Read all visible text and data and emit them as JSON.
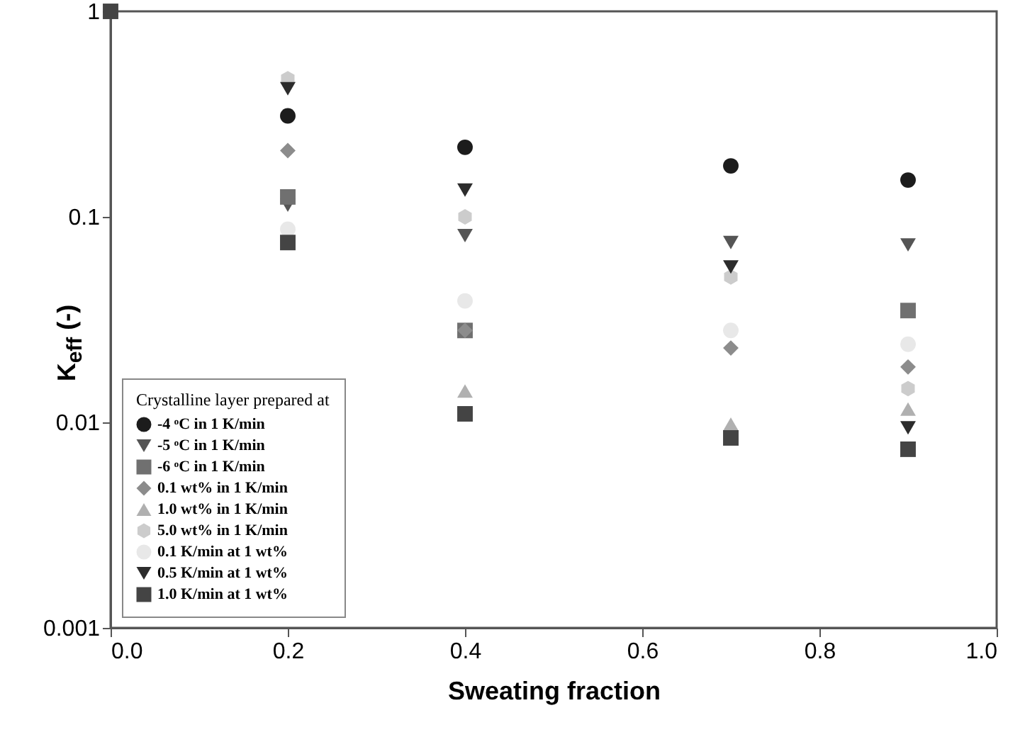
{
  "chart_data": {
    "type": "scatter",
    "xlabel": "Sweating fraction",
    "ylabel": "K$_{eff}$ (-)",
    "legend_title": "Crystalline layer prepared at",
    "x": [
      0,
      0.2,
      0.4,
      0.7,
      0.9
    ],
    "xlim": [
      0,
      1
    ],
    "xticks": [
      {
        "value": 0,
        "label": "0.0"
      },
      {
        "value": 0.2,
        "label": "0.2"
      },
      {
        "value": 0.4,
        "label": "0.4"
      },
      {
        "value": 0.6,
        "label": "0.6"
      },
      {
        "value": 0.8,
        "label": "0.8"
      },
      {
        "value": 1,
        "label": "1.0"
      }
    ],
    "ylim": [
      0.001,
      1
    ],
    "yticks": [
      0.001,
      0.01,
      0.1,
      1
    ],
    "log": "y",
    "grid": false,
    "legend": "bottom left",
    "series": [
      {
        "name": "-4 ᵒC in 1 K/min",
        "color": "#1c1c1c",
        "marker": "circle",
        "values": [
          null,
          0.31,
          0.218,
          0.177,
          0.151
        ]
      },
      {
        "name": "-5 ᵒC in 1 K/min",
        "color": "#555555",
        "marker": "triangle-down",
        "values": [
          null,
          0.114,
          0.081,
          0.075,
          0.073
        ]
      },
      {
        "name": "-6 ᵒC in 1 K/min",
        "color": "#707070",
        "marker": "square",
        "values": [
          null,
          0.125,
          0.028,
          null,
          0.035
        ]
      },
      {
        "name": "0.1 wt% in 1 K/min",
        "color": "#8c8c8c",
        "marker": "diamond",
        "values": [
          null,
          0.21,
          0.028,
          0.023,
          0.0186
        ]
      },
      {
        "name": "1.0 wt% in 1 K/min",
        "color": "#b0b0b0",
        "marker": "triangle",
        "values": [
          null,
          null,
          0.0142,
          0.0098,
          0.0116
        ]
      },
      {
        "name": "5.0 wt% in 1 K/min",
        "color": "#cccccc",
        "values": [
          null,
          0.47,
          0.1,
          0.051,
          0.0146
        ]
      },
      {
        "name": "0.1 K/min at 1 wt%",
        "color": "#e8e8e8",
        "marker": "circle",
        "values": [
          null,
          0.087,
          0.039,
          0.028,
          0.024
        ]
      },
      {
        "name": "0.5 K/min at 1 wt%",
        "color": "#2c2c2c",
        "marker": "triangle-down",
        "values": [
          null,
          0.42,
          0.135,
          0.057,
          0.0094
        ]
      },
      {
        "name": "1.0 K/min at 1 wt%",
        "color": "#444444",
        "marker": "square",
        "values": [
          1,
          0.075,
          0.011,
          0.0084,
          0.0074
        ]
      }
    ]
  }
}
